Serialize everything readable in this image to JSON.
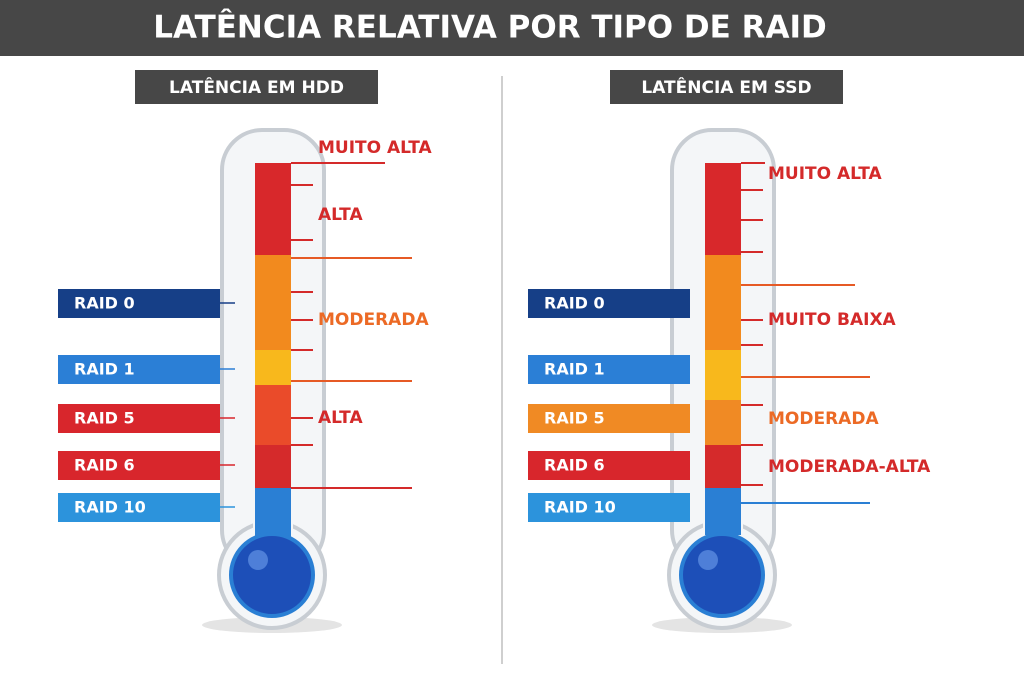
{
  "title": "LATÊNCIA RELATIVA POR TIPO DE RAID",
  "panels": [
    {
      "header": "LATÊNCIA EM HDD",
      "raids": [
        {
          "label": "RAID 0",
          "color": "#163f87"
        },
        {
          "label": "RAID 1",
          "color": "#2b7fd6"
        },
        {
          "label": "RAID 5",
          "color": "#d8262c"
        },
        {
          "label": "RAID 6",
          "color": "#d8262c"
        },
        {
          "label": "RAID 10",
          "color": "#2c93dc"
        }
      ],
      "levels": [
        {
          "label": "MUITO ALTA",
          "color": "#d42a2a"
        },
        {
          "label": "ALTA",
          "color": "#d42a2a"
        },
        {
          "label": "MODERADA",
          "color": "#ec6a25"
        },
        {
          "label": "ALTA",
          "color": "#d42a2a"
        }
      ]
    },
    {
      "header": "LATÊNCIA EM SSD",
      "raids": [
        {
          "label": "RAID 0",
          "color": "#163f87"
        },
        {
          "label": "RAID 1",
          "color": "#2b7fd6"
        },
        {
          "label": "RAID 5",
          "color": "#f08a24"
        },
        {
          "label": "RAID 6",
          "color": "#d8262c"
        },
        {
          "label": "RAID 10",
          "color": "#2c93dc"
        }
      ],
      "levels": [
        {
          "label": "MUITO ALTA",
          "color": "#d42a2a"
        },
        {
          "label": "MUITO BAIXA",
          "color": "#d42a2a"
        },
        {
          "label": "MODERADA",
          "color": "#ec6a25"
        },
        {
          "label": "MODERADA-ALTA",
          "color": "#d42a2a"
        }
      ]
    }
  ]
}
